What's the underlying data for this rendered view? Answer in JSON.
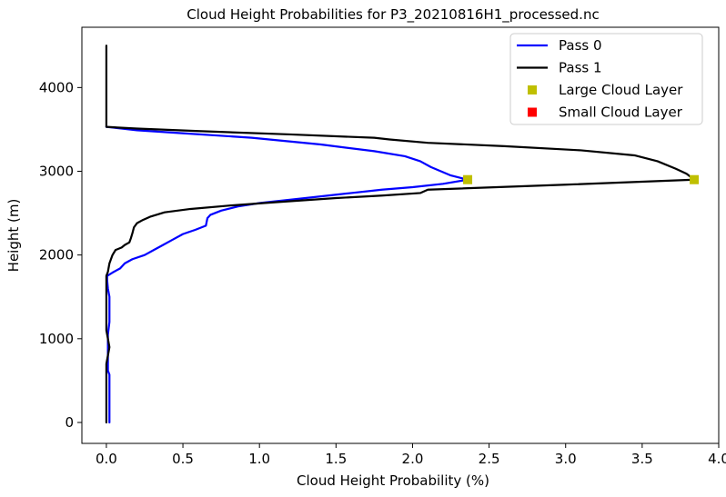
{
  "chart_data": {
    "type": "line",
    "title": "Cloud Height Probabilities for P3_20210816H1_processed.nc",
    "xlabel": "Cloud Height Probability (%)",
    "ylabel": "Height (m)",
    "xlim": [
      -0.16,
      4.0
    ],
    "ylim": [
      -250,
      4720
    ],
    "x_ticks": [
      0.0,
      0.5,
      1.0,
      1.5,
      2.0,
      2.5,
      3.0,
      3.5,
      4.0
    ],
    "x_tick_labels": [
      "0.0",
      "0.5",
      "1.0",
      "1.5",
      "2.0",
      "2.5",
      "3.0",
      "3.5",
      "4.0"
    ],
    "y_ticks": [
      0,
      1000,
      2000,
      3000,
      4000
    ],
    "y_tick_labels": [
      "0",
      "1000",
      "2000",
      "3000",
      "4000"
    ],
    "grid": false,
    "legend_position": "top-right",
    "series": [
      {
        "name": "Pass 0",
        "color": "#0000ff",
        "points": [
          [
            0.02,
            0
          ],
          [
            0.02,
            300
          ],
          [
            0.02,
            570
          ],
          [
            0.01,
            620
          ],
          [
            0.01,
            900
          ],
          [
            0.01,
            1050
          ],
          [
            0.02,
            1200
          ],
          [
            0.02,
            1500
          ],
          [
            0.01,
            1600
          ],
          [
            0.005,
            1700
          ],
          [
            0.005,
            1750
          ],
          [
            0.04,
            1790
          ],
          [
            0.09,
            1840
          ],
          [
            0.12,
            1900
          ],
          [
            0.17,
            1950
          ],
          [
            0.25,
            2000
          ],
          [
            0.31,
            2060
          ],
          [
            0.37,
            2120
          ],
          [
            0.43,
            2180
          ],
          [
            0.5,
            2250
          ],
          [
            0.58,
            2300
          ],
          [
            0.65,
            2350
          ],
          [
            0.66,
            2440
          ],
          [
            0.68,
            2480
          ],
          [
            0.75,
            2530
          ],
          [
            0.86,
            2580
          ],
          [
            1.0,
            2620
          ],
          [
            1.3,
            2680
          ],
          [
            1.6,
            2740
          ],
          [
            1.8,
            2780
          ],
          [
            2.0,
            2810
          ],
          [
            2.2,
            2850
          ],
          [
            2.36,
            2900
          ],
          [
            2.25,
            2950
          ],
          [
            2.12,
            3050
          ],
          [
            2.05,
            3120
          ],
          [
            1.95,
            3180
          ],
          [
            1.75,
            3240
          ],
          [
            1.4,
            3320
          ],
          [
            0.95,
            3400
          ],
          [
            0.45,
            3460
          ],
          [
            0.2,
            3490
          ],
          [
            0.05,
            3520
          ],
          [
            0.0,
            3530
          ]
        ]
      },
      {
        "name": "Pass 1",
        "color": "#000000",
        "points": [
          [
            0.0,
            0
          ],
          [
            0.0,
            600
          ],
          [
            0.0,
            700
          ],
          [
            0.01,
            800
          ],
          [
            0.02,
            900
          ],
          [
            0.01,
            1000
          ],
          [
            0.0,
            1100
          ],
          [
            0.0,
            1600
          ],
          [
            0.0,
            1750
          ],
          [
            0.01,
            1800
          ],
          [
            0.02,
            1900
          ],
          [
            0.04,
            2000
          ],
          [
            0.06,
            2060
          ],
          [
            0.1,
            2090
          ],
          [
            0.12,
            2120
          ],
          [
            0.15,
            2150
          ],
          [
            0.16,
            2200
          ],
          [
            0.17,
            2260
          ],
          [
            0.18,
            2330
          ],
          [
            0.2,
            2380
          ],
          [
            0.24,
            2420
          ],
          [
            0.29,
            2460
          ],
          [
            0.38,
            2510
          ],
          [
            0.55,
            2550
          ],
          [
            0.8,
            2590
          ],
          [
            1.1,
            2630
          ],
          [
            1.5,
            2680
          ],
          [
            1.8,
            2710
          ],
          [
            2.05,
            2740
          ],
          [
            2.1,
            2780
          ],
          [
            3.0,
            2840
          ],
          [
            3.84,
            2900
          ],
          [
            3.79,
            2970
          ],
          [
            3.72,
            3030
          ],
          [
            3.6,
            3120
          ],
          [
            3.45,
            3190
          ],
          [
            3.1,
            3250
          ],
          [
            2.6,
            3300
          ],
          [
            2.1,
            3340
          ],
          [
            1.85,
            3380
          ],
          [
            1.75,
            3400
          ],
          [
            1.2,
            3440
          ],
          [
            0.6,
            3480
          ],
          [
            0.2,
            3510
          ],
          [
            0.0,
            3530
          ],
          [
            0.0,
            4500
          ]
        ]
      }
    ],
    "markers": [
      {
        "name": "Large Cloud Layer",
        "color": "#bfbf00",
        "points": [
          [
            2.36,
            2900
          ],
          [
            3.84,
            2900
          ]
        ]
      },
      {
        "name": "Small Cloud Layer",
        "color": "#ff0000",
        "points": []
      }
    ],
    "legend": [
      {
        "label": "Pass 0",
        "kind": "line",
        "color": "#0000ff"
      },
      {
        "label": "Pass 1",
        "kind": "line",
        "color": "#000000"
      },
      {
        "label": "Large Cloud Layer",
        "kind": "square",
        "color": "#bfbf00"
      },
      {
        "label": "Small Cloud Layer",
        "kind": "square",
        "color": "#ff0000"
      }
    ]
  }
}
